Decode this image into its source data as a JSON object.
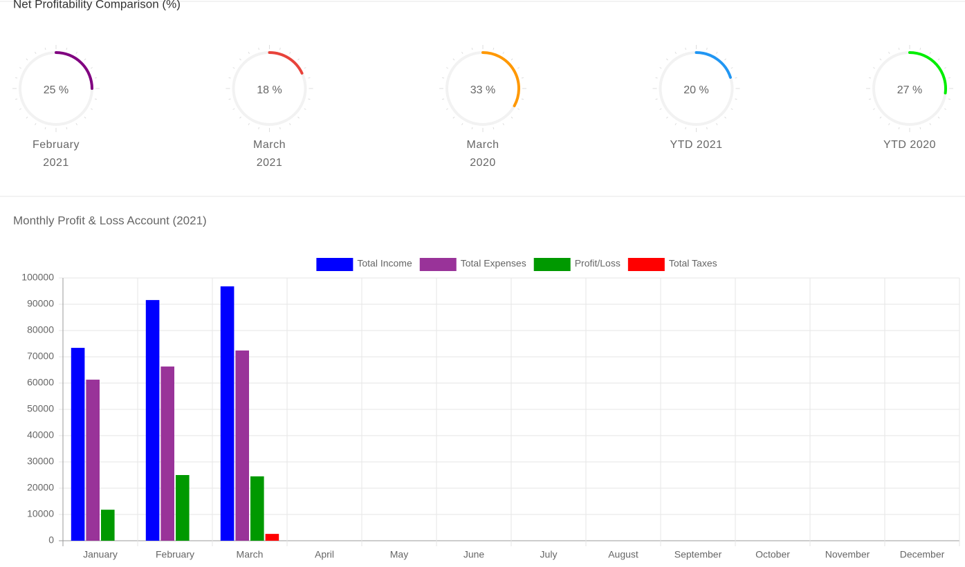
{
  "chart_data": [
    {
      "type": "gauge",
      "title": "Net Profitability Comparison (%)",
      "categories": [
        "February 2021",
        "March 2021",
        "March 2020",
        "YTD 2021",
        "YTD 2020"
      ],
      "values": [
        25,
        18,
        33,
        20,
        27
      ],
      "value_labels": [
        "25 %",
        "18 %",
        "33 %",
        "20 %",
        "27 %"
      ],
      "colors": [
        "#800080",
        "#e8433b",
        "#ff9800",
        "#2196f3",
        "#00ee00"
      ]
    },
    {
      "type": "bar",
      "title": "Monthly Profit & Loss Account (2021)",
      "categories": [
        "January",
        "February",
        "March",
        "April",
        "May",
        "June",
        "July",
        "August",
        "September",
        "October",
        "November",
        "December"
      ],
      "series": [
        {
          "name": "Total Income",
          "color": "#0000ff",
          "values": [
            73400,
            91600,
            96800,
            null,
            null,
            null,
            null,
            null,
            null,
            null,
            null,
            null
          ]
        },
        {
          "name": "Total Expenses",
          "color": "#993399",
          "values": [
            61300,
            66300,
            72400,
            null,
            null,
            null,
            null,
            null,
            null,
            null,
            null,
            null
          ]
        },
        {
          "name": "Profit/Loss",
          "color": "#009900",
          "values": [
            11800,
            25000,
            24500,
            null,
            null,
            null,
            null,
            null,
            null,
            null,
            null,
            null
          ]
        },
        {
          "name": "Total Taxes",
          "color": "#ff0000",
          "values": [
            0,
            0,
            2600,
            null,
            null,
            null,
            null,
            null,
            null,
            null,
            null,
            null
          ]
        }
      ],
      "ylim": [
        0,
        100000
      ],
      "yticks": [
        0,
        10000,
        20000,
        30000,
        40000,
        50000,
        60000,
        70000,
        80000,
        90000,
        100000
      ],
      "grid": true,
      "legend": "top"
    }
  ]
}
